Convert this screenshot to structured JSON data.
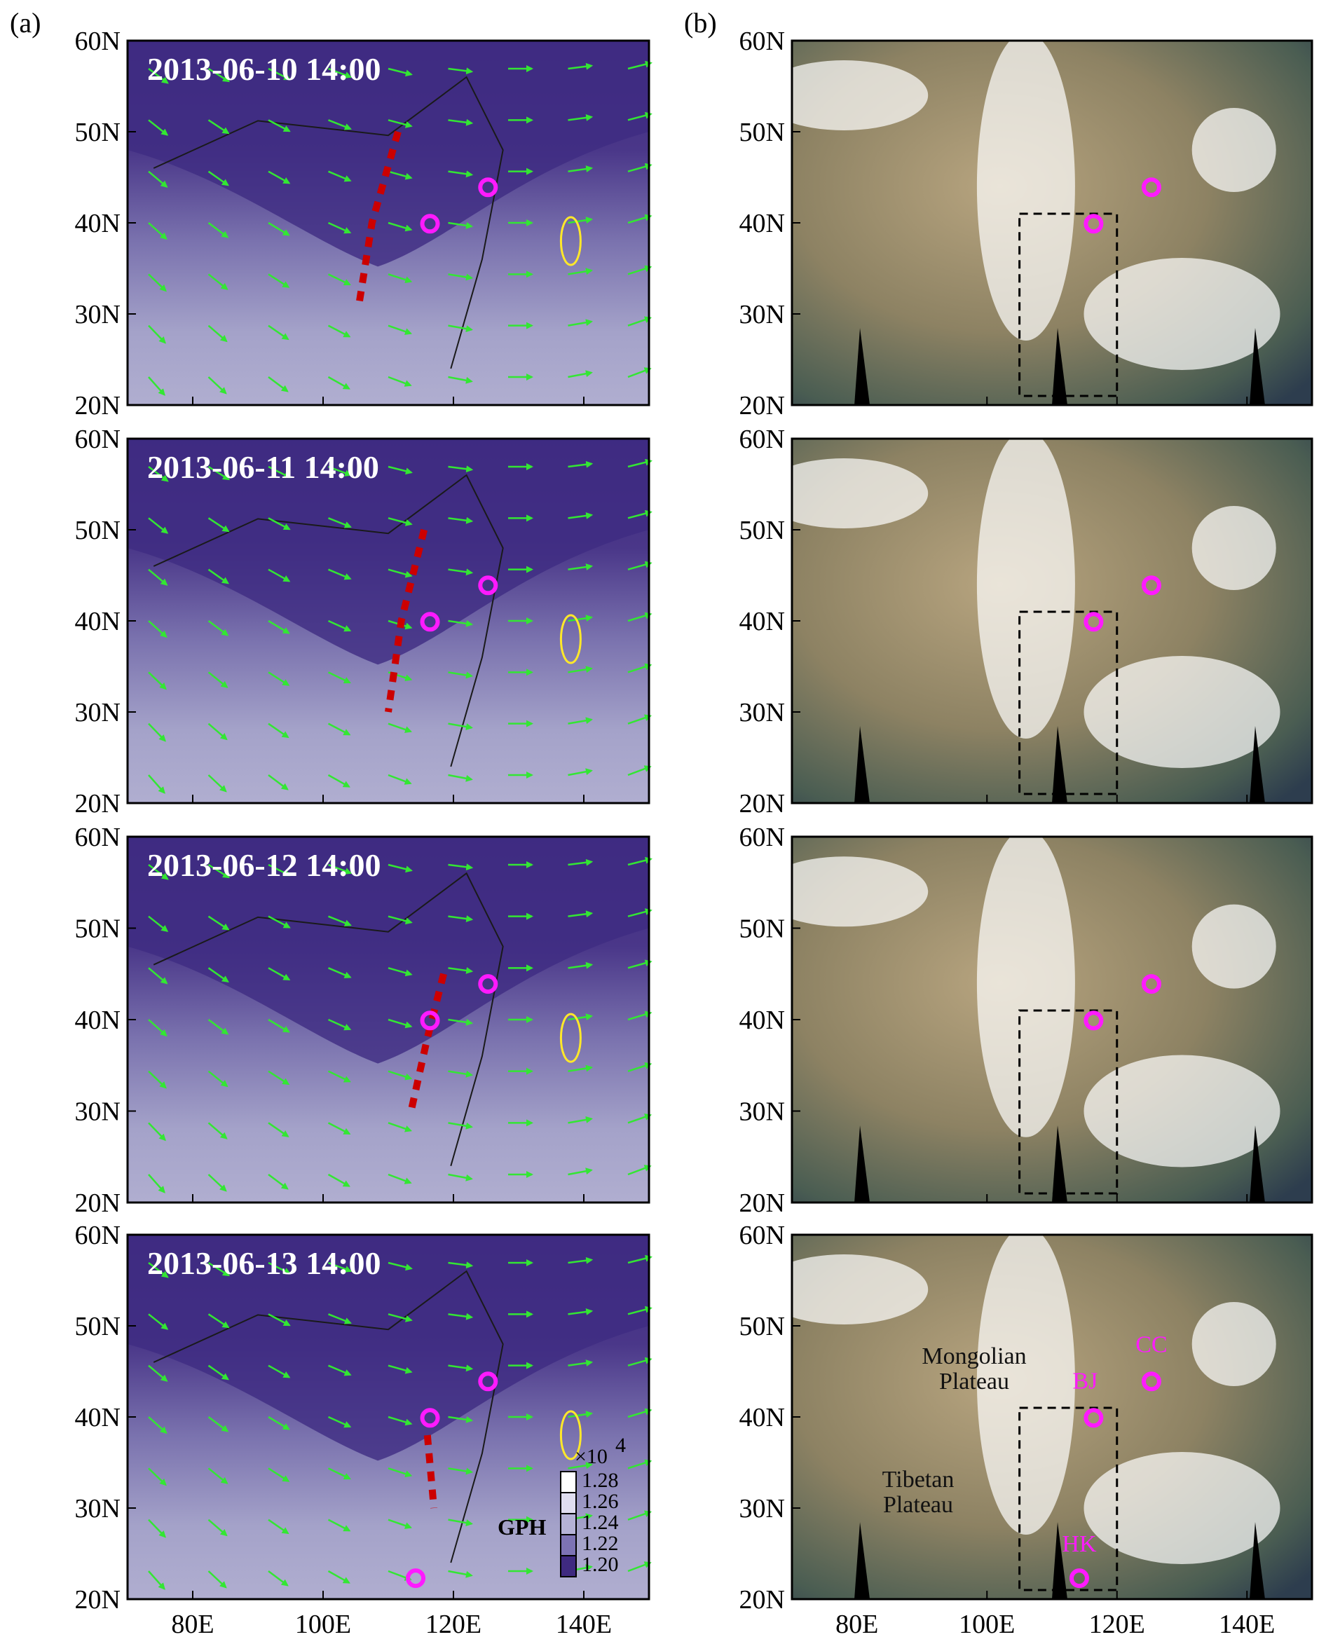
{
  "figure": {
    "panel_labels": [
      "(a)",
      "(b)"
    ],
    "rows": [
      {
        "timestamp": "2013-06-10 14:00",
        "trough_line": [
          [
            111.5,
            50
          ],
          [
            107.5,
            40
          ],
          [
            105.5,
            31
          ]
        ],
        "box_top_lat": 41
      },
      {
        "timestamp": "2013-06-11 14:00",
        "trough_line": [
          [
            115.5,
            50
          ],
          [
            112.0,
            40
          ],
          [
            110.0,
            30
          ]
        ],
        "box_top_lat": 41
      },
      {
        "timestamp": "2013-06-12 14:00",
        "trough_line": [
          [
            118.5,
            45
          ],
          [
            116.0,
            38
          ],
          [
            113.5,
            30
          ]
        ],
        "box_top_lat": 41
      },
      {
        "timestamp": "2013-06-13 14:00",
        "trough_line": [
          [
            116.0,
            38
          ],
          [
            116.5,
            34
          ],
          [
            117.0,
            30
          ]
        ],
        "box_top_lat": 41
      }
    ],
    "axes": {
      "lat_ticks": [
        "60N",
        "50N",
        "40N",
        "30N",
        "20N"
      ],
      "lon_ticks": [
        "80E",
        "100E",
        "120E",
        "140E"
      ],
      "lat_values": [
        60,
        50,
        40,
        30,
        20
      ],
      "lon_values": [
        80,
        100,
        120,
        140
      ],
      "lon_range": [
        70,
        150
      ],
      "lat_range": [
        20,
        60
      ]
    },
    "sites": [
      {
        "code": "BJ",
        "lon": 116.4,
        "lat": 39.9
      },
      {
        "code": "CC",
        "lon": 125.3,
        "lat": 43.9
      },
      {
        "code": "HK",
        "lon": 114.2,
        "lat": 22.3
      }
    ],
    "region_labels": [
      {
        "line1": "Mongolian",
        "line2": "Plateau"
      },
      {
        "line1": "Tibetan",
        "line2": "Plateau"
      }
    ],
    "colorbar": {
      "exponent": "×10",
      "exponent_power": "4",
      "labels": [
        "1.28",
        "1.26",
        "1.24",
        "1.22",
        "1.20"
      ],
      "title": "GPH"
    },
    "dashed_box": {
      "lon": [
        105,
        120
      ],
      "lat_bottom": 21
    },
    "colors": {
      "gph_dark": "#3f2a80",
      "gph_mid": "#6e64a6",
      "gph_light": "#aaa8cc",
      "wind": "#33e633",
      "contour": "#ffe82a",
      "trough": "#cc0000",
      "site": "#ff1aff"
    }
  }
}
